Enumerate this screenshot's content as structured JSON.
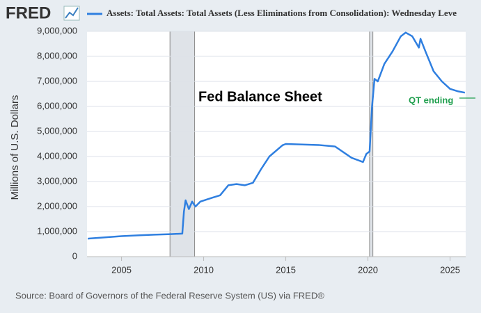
{
  "logo": "FRED",
  "chart_data": {
    "type": "line",
    "x": [
      2002.95,
      2004,
      2005,
      2006,
      2007,
      2008.0,
      2008.7,
      2008.8,
      2008.9,
      2009.1,
      2009.3,
      2009.5,
      2009.8,
      2010.5,
      2011.0,
      2011.5,
      2012,
      2012.5,
      2013,
      2013.5,
      2014,
      2014.8,
      2015,
      2016,
      2017,
      2018,
      2019,
      2019.7,
      2019.9,
      2020.1,
      2020.25,
      2020.4,
      2020.6,
      2021,
      2021.5,
      2022.0,
      2022.3,
      2022.7,
      2023.1,
      2023.2,
      2023.5,
      2024,
      2024.5,
      2025,
      2025.5,
      2025.9
    ],
    "series": [
      {
        "name": "Assets: Total Assets: Total Assets (Less Eliminations from Consolidation): Wednesday Leve",
        "color": "#2f7fe0",
        "values": [
          720000,
          770000,
          820000,
          850000,
          880000,
          900000,
          920000,
          1800000,
          2250000,
          1900000,
          2200000,
          2000000,
          2200000,
          2350000,
          2450000,
          2850000,
          2900000,
          2850000,
          2950000,
          3500000,
          4000000,
          4450000,
          4500000,
          4480000,
          4460000,
          4400000,
          3950000,
          3780000,
          4100000,
          4200000,
          6000000,
          7100000,
          7000000,
          7700000,
          8200000,
          8800000,
          8950000,
          8800000,
          8350000,
          8700000,
          8200000,
          7400000,
          7000000,
          6700000,
          6600000,
          6550000
        ]
      }
    ],
    "recessions": [
      [
        2007.95,
        2009.45
      ],
      [
        2020.1,
        2020.3
      ]
    ],
    "xlim": [
      2002.9,
      2025.95
    ],
    "xticks": [
      2005,
      2010,
      2015,
      2020,
      2025
    ],
    "ylim": [
      0,
      9000000
    ],
    "yticks": [
      0,
      {
        "value": 1000000,
        "label": "1,000,000"
      },
      {
        "value": 2000000,
        "label": "2,000,000"
      },
      {
        "value": 3000000,
        "label": "3,000,000"
      },
      {
        "value": 4000000,
        "label": "4,000,000"
      },
      {
        "value": 5000000,
        "label": "5,000,000"
      },
      {
        "value": 6000000,
        "label": "6,000,000"
      },
      {
        "value": 7000000,
        "label": "7,000,000"
      },
      {
        "value": 8000000,
        "label": "8,000,000"
      },
      {
        "value": 9000000,
        "label": "9,000,000"
      }
    ],
    "y_label": "Millions of U.S. Dollars",
    "grid": true,
    "annotations": [
      "Fed Balance Sheet",
      "QT ending"
    ],
    "source": "Source: Board of Governors of the Federal Reserve System (US) via FRED®"
  }
}
